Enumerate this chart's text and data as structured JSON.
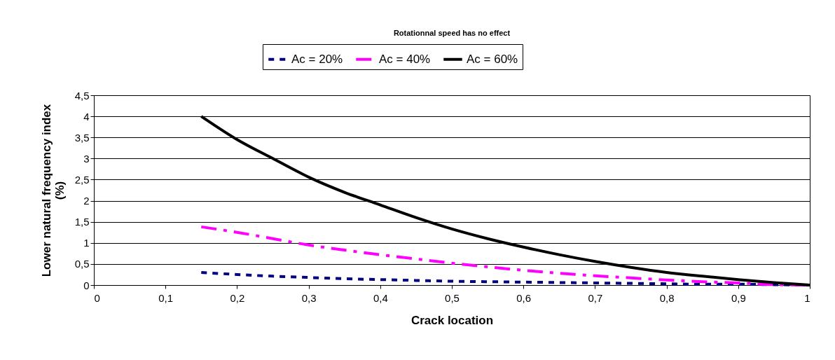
{
  "chart_data": {
    "type": "line",
    "title": "Rotationnal speed has no effect",
    "xlabel": "Crack location",
    "ylabel": "Lower natural frequency index (%)",
    "x": [
      0.15,
      0.2,
      0.25,
      0.3,
      0.35,
      0.4,
      0.45,
      0.5,
      0.55,
      0.6,
      0.65,
      0.7,
      0.75,
      0.8,
      0.85,
      0.9,
      0.95,
      1.0
    ],
    "series": [
      {
        "name": "Ac = 20%",
        "color": "#000080",
        "line_style": "dotted",
        "values": [
          0.3,
          0.25,
          0.21,
          0.18,
          0.15,
          0.13,
          0.11,
          0.09,
          0.08,
          0.07,
          0.06,
          0.05,
          0.04,
          0.03,
          0.02,
          0.02,
          0.01,
          0
        ]
      },
      {
        "name": "Ac = 40%",
        "color": "#ff00ff",
        "line_style": "dashed",
        "values": [
          1.38,
          1.25,
          1.1,
          0.95,
          0.83,
          0.72,
          0.62,
          0.52,
          0.43,
          0.35,
          0.28,
          0.22,
          0.17,
          0.12,
          0.08,
          0.05,
          0.01,
          0
        ]
      },
      {
        "name": "Ac = 60%",
        "color": "#000000",
        "line_style": "solid",
        "values": [
          4.0,
          3.45,
          3.0,
          2.56,
          2.2,
          1.9,
          1.6,
          1.33,
          1.1,
          0.9,
          0.72,
          0.56,
          0.42,
          0.3,
          0.21,
          0.13,
          0.06,
          0
        ]
      }
    ],
    "xlim": [
      0,
      1
    ],
    "xticks": [
      0,
      {
        "value": 0.1,
        "label": "0,1"
      },
      {
        "value": 0.2,
        "label": "0,2"
      },
      {
        "value": 0.3,
        "label": "0,3"
      },
      {
        "value": 0.4,
        "label": "0,4"
      },
      {
        "value": 0.5,
        "label": "0,5"
      },
      {
        "value": 0.6,
        "label": "0,6"
      },
      {
        "value": 0.7,
        "label": "0,7"
      },
      {
        "value": 0.8,
        "label": "0,8"
      },
      {
        "value": 0.9,
        "label": "0,9"
      },
      1
    ],
    "ylim": [
      0,
      4.5
    ],
    "yticks": [
      0,
      {
        "value": 0.5,
        "label": "0,5"
      },
      1,
      {
        "value": 1.5,
        "label": "1,5"
      },
      2,
      {
        "value": 2.5,
        "label": "2,5"
      },
      3,
      {
        "value": 3.5,
        "label": "3,5"
      },
      4,
      {
        "value": 4.5,
        "label": "4,5"
      }
    ],
    "grid": "y",
    "legend": "top",
    "marker": "none"
  }
}
